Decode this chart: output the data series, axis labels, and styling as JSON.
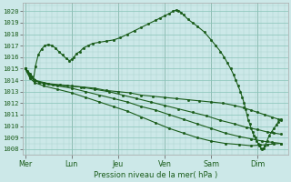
{
  "title": "Pression niveau de la mer( hPa )",
  "bg_color": "#cce8e8",
  "grid_minor_color": "#a8d4cc",
  "grid_major_color": "#88c4b8",
  "line_color": "#1a5c1a",
  "dark_line_color": "#1a4a1a",
  "ylim": [
    1007.5,
    1020.7
  ],
  "yticks": [
    1008,
    1009,
    1010,
    1011,
    1012,
    1013,
    1014,
    1015,
    1016,
    1017,
    1018,
    1019,
    1020
  ],
  "day_labels": [
    "Mer",
    "Lun",
    "Jeu",
    "Ven",
    "Sam",
    "Dim"
  ],
  "day_x": [
    0.0,
    1.0,
    2.0,
    3.0,
    4.0,
    5.0
  ],
  "xlim": [
    -0.05,
    5.65
  ],
  "lines": [
    [
      [
        0.0,
        1015.0
      ],
      [
        0.05,
        1014.8
      ],
      [
        0.1,
        1014.6
      ],
      [
        0.15,
        1014.3
      ],
      [
        0.18,
        1014.1
      ],
      [
        0.22,
        1015.2
      ],
      [
        0.28,
        1016.2
      ],
      [
        0.35,
        1016.7
      ],
      [
        0.42,
        1017.0
      ],
      [
        0.5,
        1017.1
      ],
      [
        0.58,
        1017.0
      ],
      [
        0.65,
        1016.8
      ],
      [
        0.72,
        1016.5
      ],
      [
        0.8,
        1016.2
      ],
      [
        0.88,
        1015.9
      ],
      [
        0.95,
        1015.7
      ],
      [
        1.0,
        1015.8
      ],
      [
        1.05,
        1016.0
      ],
      [
        1.1,
        1016.3
      ],
      [
        1.18,
        1016.5
      ],
      [
        1.25,
        1016.8
      ],
      [
        1.35,
        1017.0
      ],
      [
        1.45,
        1017.2
      ],
      [
        1.6,
        1017.3
      ],
      [
        1.75,
        1017.4
      ],
      [
        1.9,
        1017.5
      ],
      [
        2.05,
        1017.7
      ],
      [
        2.2,
        1018.0
      ],
      [
        2.35,
        1018.3
      ],
      [
        2.5,
        1018.6
      ],
      [
        2.65,
        1018.9
      ],
      [
        2.8,
        1019.2
      ],
      [
        2.9,
        1019.4
      ],
      [
        3.0,
        1019.6
      ],
      [
        3.1,
        1019.8
      ],
      [
        3.18,
        1020.0
      ],
      [
        3.25,
        1020.1
      ],
      [
        3.3,
        1020.05
      ],
      [
        3.35,
        1019.9
      ],
      [
        3.4,
        1019.7
      ],
      [
        3.5,
        1019.3
      ],
      [
        3.6,
        1019.0
      ],
      [
        3.7,
        1018.7
      ],
      [
        3.85,
        1018.2
      ],
      [
        4.0,
        1017.5
      ],
      [
        4.1,
        1017.0
      ],
      [
        4.2,
        1016.5
      ],
      [
        4.28,
        1016.0
      ],
      [
        4.35,
        1015.5
      ],
      [
        4.42,
        1015.0
      ],
      [
        4.48,
        1014.5
      ],
      [
        4.53,
        1014.0
      ],
      [
        4.58,
        1013.5
      ],
      [
        4.63,
        1013.0
      ],
      [
        4.67,
        1012.5
      ],
      [
        4.71,
        1012.0
      ],
      [
        4.74,
        1011.5
      ],
      [
        4.77,
        1011.0
      ],
      [
        4.8,
        1010.5
      ],
      [
        4.83,
        1010.2
      ],
      [
        4.86,
        1009.8
      ],
      [
        4.89,
        1009.5
      ],
      [
        4.92,
        1009.2
      ],
      [
        4.95,
        1009.0
      ],
      [
        4.98,
        1008.7
      ],
      [
        5.01,
        1008.5
      ],
      [
        5.04,
        1008.3
      ],
      [
        5.07,
        1008.1
      ],
      [
        5.1,
        1008.0
      ],
      [
        5.13,
        1008.1
      ],
      [
        5.16,
        1008.3
      ],
      [
        5.2,
        1008.7
      ],
      [
        5.25,
        1009.2
      ],
      [
        5.3,
        1009.5
      ],
      [
        5.35,
        1009.8
      ],
      [
        5.4,
        1010.1
      ],
      [
        5.45,
        1010.4
      ],
      [
        5.5,
        1010.6
      ]
    ],
    [
      [
        0.0,
        1015.0
      ],
      [
        0.1,
        1014.5
      ],
      [
        0.2,
        1014.0
      ],
      [
        0.3,
        1013.8
      ],
      [
        0.5,
        1013.7
      ],
      [
        0.75,
        1013.6
      ],
      [
        1.0,
        1013.5
      ],
      [
        1.25,
        1013.4
      ],
      [
        1.5,
        1013.3
      ],
      [
        1.75,
        1013.1
      ],
      [
        2.0,
        1013.0
      ],
      [
        2.25,
        1012.9
      ],
      [
        2.5,
        1012.7
      ],
      [
        2.75,
        1012.6
      ],
      [
        3.0,
        1012.5
      ],
      [
        3.25,
        1012.4
      ],
      [
        3.5,
        1012.3
      ],
      [
        3.75,
        1012.2
      ],
      [
        4.0,
        1012.1
      ],
      [
        4.25,
        1012.0
      ],
      [
        4.5,
        1011.8
      ],
      [
        4.7,
        1011.6
      ],
      [
        4.85,
        1011.4
      ],
      [
        5.0,
        1011.2
      ],
      [
        5.15,
        1011.0
      ],
      [
        5.3,
        1010.8
      ],
      [
        5.45,
        1010.6
      ],
      [
        5.5,
        1010.5
      ]
    ],
    [
      [
        0.0,
        1015.0
      ],
      [
        0.1,
        1014.4
      ],
      [
        0.2,
        1014.0
      ],
      [
        0.4,
        1013.8
      ],
      [
        0.6,
        1013.6
      ],
      [
        0.9,
        1013.5
      ],
      [
        1.2,
        1013.4
      ],
      [
        1.5,
        1013.2
      ],
      [
        1.8,
        1013.0
      ],
      [
        2.1,
        1012.7
      ],
      [
        2.4,
        1012.4
      ],
      [
        2.7,
        1012.1
      ],
      [
        3.0,
        1011.8
      ],
      [
        3.3,
        1011.5
      ],
      [
        3.6,
        1011.2
      ],
      [
        3.9,
        1010.9
      ],
      [
        4.2,
        1010.5
      ],
      [
        4.5,
        1010.2
      ],
      [
        4.75,
        1009.9
      ],
      [
        5.0,
        1009.7
      ],
      [
        5.2,
        1009.5
      ],
      [
        5.35,
        1009.4
      ],
      [
        5.5,
        1009.3
      ]
    ],
    [
      [
        0.0,
        1015.0
      ],
      [
        0.1,
        1014.3
      ],
      [
        0.2,
        1014.0
      ],
      [
        0.4,
        1013.7
      ],
      [
        0.7,
        1013.5
      ],
      [
        1.0,
        1013.3
      ],
      [
        1.3,
        1013.0
      ],
      [
        1.6,
        1012.7
      ],
      [
        1.9,
        1012.4
      ],
      [
        2.2,
        1012.1
      ],
      [
        2.5,
        1011.7
      ],
      [
        2.8,
        1011.4
      ],
      [
        3.1,
        1011.0
      ],
      [
        3.4,
        1010.6
      ],
      [
        3.7,
        1010.2
      ],
      [
        4.0,
        1009.8
      ],
      [
        4.3,
        1009.4
      ],
      [
        4.6,
        1009.1
      ],
      [
        4.85,
        1008.9
      ],
      [
        5.1,
        1008.7
      ],
      [
        5.3,
        1008.6
      ],
      [
        5.5,
        1008.5
      ]
    ],
    [
      [
        0.0,
        1015.0
      ],
      [
        0.1,
        1014.2
      ],
      [
        0.2,
        1013.8
      ],
      [
        0.4,
        1013.5
      ],
      [
        0.7,
        1013.2
      ],
      [
        1.0,
        1012.9
      ],
      [
        1.3,
        1012.5
      ],
      [
        1.6,
        1012.1
      ],
      [
        1.9,
        1011.7
      ],
      [
        2.2,
        1011.3
      ],
      [
        2.5,
        1010.8
      ],
      [
        2.8,
        1010.3
      ],
      [
        3.1,
        1009.8
      ],
      [
        3.4,
        1009.4
      ],
      [
        3.7,
        1009.0
      ],
      [
        4.0,
        1008.7
      ],
      [
        4.3,
        1008.5
      ],
      [
        4.6,
        1008.4
      ],
      [
        4.85,
        1008.3
      ],
      [
        5.05,
        1008.35
      ],
      [
        5.2,
        1008.4
      ],
      [
        5.35,
        1008.45
      ],
      [
        5.5,
        1008.5
      ]
    ]
  ]
}
